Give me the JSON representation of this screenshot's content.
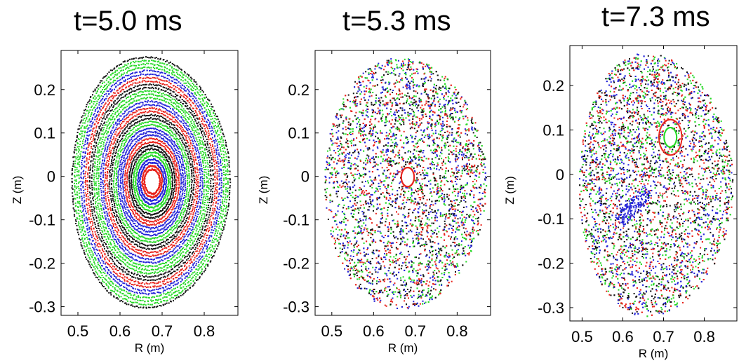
{
  "colors": {
    "red": "#e8221b",
    "blue": "#2424d8",
    "green": "#25d825",
    "black": "#111111"
  },
  "chart_data": [
    {
      "type": "scatter",
      "title": "t=5.0 ms",
      "xlabel": "R (m)",
      "ylabel": "Z (m)",
      "xlim": [
        0.46,
        0.88
      ],
      "ylim": [
        -0.32,
        0.29
      ],
      "xticks": [
        0.5,
        0.6,
        0.7,
        0.8
      ],
      "xtick_labels": [
        "0.5",
        "0.6",
        "0.7",
        "0.8"
      ],
      "yticks": [
        0.2,
        0.1,
        0,
        -0.1,
        -0.2,
        -0.3
      ],
      "ytick_labels": [
        "0.2",
        "0.1",
        "0",
        "-0.1",
        "-0.2",
        "-0.3"
      ],
      "grid": false,
      "axis_center": [
        0.675,
        -0.01
      ],
      "boundary": {
        "r_min": 0.485,
        "r_max": 0.86,
        "z_min": -0.31,
        "z_max": 0.285
      },
      "island": {
        "r": 0.675,
        "z": 0.0
      },
      "pattern": "nested closed flux surfaces",
      "series": [
        {
          "color": "red"
        },
        {
          "color": "blue"
        },
        {
          "color": "green"
        },
        {
          "color": "black"
        }
      ]
    },
    {
      "type": "scatter",
      "title": "t=5.3 ms",
      "xlabel": "R (m)",
      "ylabel": "Z (m)",
      "xlim": [
        0.46,
        0.88
      ],
      "ylim": [
        -0.32,
        0.29
      ],
      "xticks": [
        0.5,
        0.6,
        0.7,
        0.8
      ],
      "xtick_labels": [
        "0.5",
        "0.6",
        "0.7",
        "0.8"
      ],
      "yticks": [
        0.2,
        0.1,
        0,
        -0.1,
        -0.2,
        -0.3
      ],
      "ytick_labels": [
        "0.2",
        "0.1",
        "0",
        "-0.1",
        "-0.2",
        "-0.3"
      ],
      "grid": false,
      "axis_center": [
        0.68,
        -0.01
      ],
      "boundary": {
        "r_min": 0.48,
        "r_max": 0.87,
        "z_min": -0.315,
        "z_max": 0.285
      },
      "island": {
        "r": 0.68,
        "z": 0.0
      },
      "pattern": "stochastic field with small core",
      "series": [
        {
          "color": "red"
        },
        {
          "color": "blue"
        },
        {
          "color": "green"
        },
        {
          "color": "black"
        }
      ]
    },
    {
      "type": "scatter",
      "title": "t=7.3 ms",
      "xlabel": "R (m)",
      "ylabel": "Z (m)",
      "xlim": [
        0.47,
        0.88
      ],
      "ylim": [
        -0.33,
        0.29
      ],
      "xticks": [
        0.5,
        0.6,
        0.7,
        0.8
      ],
      "xtick_labels": [
        "0.5",
        "0.6",
        "0.7",
        "0.8"
      ],
      "yticks": [
        0.2,
        0.1,
        0,
        -0.1,
        -0.2,
        -0.3
      ],
      "ytick_labels": [
        "0.2",
        "0.1",
        "0",
        "-0.1",
        "-0.2",
        "-0.3"
      ],
      "grid": false,
      "axis_center": [
        0.67,
        -0.02
      ],
      "boundary": {
        "r_min": 0.49,
        "r_max": 0.87,
        "z_min": -0.33,
        "z_max": 0.285
      },
      "island": {
        "r": 0.715,
        "z": 0.085
      },
      "second_island": {
        "r": 0.625,
        "z": -0.07
      },
      "pattern": "stochastic field with magnetic islands",
      "series": [
        {
          "color": "red"
        },
        {
          "color": "blue"
        },
        {
          "color": "green"
        },
        {
          "color": "black"
        }
      ]
    }
  ]
}
